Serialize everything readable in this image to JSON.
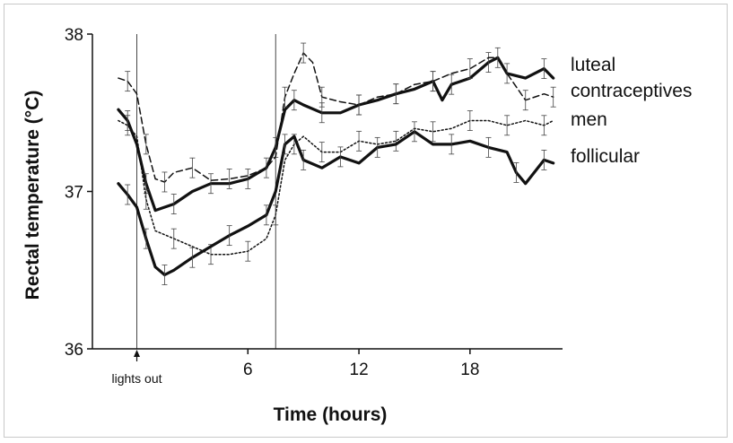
{
  "chart_data": {
    "type": "line",
    "xlabel": "Time (hours)",
    "ylabel": "Rectal temperature (°C)",
    "xlim": [
      -2.4,
      23
    ],
    "ylim": [
      36,
      38
    ],
    "xticks": [
      6,
      12,
      18
    ],
    "yticks": [
      36,
      37,
      38
    ],
    "grid": false,
    "annotations": [
      {
        "text": "lights out",
        "x": 0
      }
    ],
    "reference_lines_x": [
      0,
      7.5
    ],
    "series": [
      {
        "name": "luteal",
        "style": "solid-thick",
        "x": [
          -1,
          -0.5,
          0,
          0.5,
          1,
          2,
          3,
          4,
          5,
          6,
          7,
          7.5,
          8,
          8.5,
          9,
          10,
          11,
          12,
          13,
          14,
          15,
          16,
          16.5,
          17,
          18,
          19,
          19.5,
          20,
          21,
          22,
          22.5
        ],
        "y": [
          37.52,
          37.45,
          37.3,
          37.05,
          36.88,
          36.92,
          37.0,
          37.05,
          37.05,
          37.08,
          37.15,
          37.28,
          37.52,
          37.58,
          37.55,
          37.5,
          37.5,
          37.55,
          37.58,
          37.62,
          37.65,
          37.7,
          37.58,
          37.68,
          37.72,
          37.82,
          37.85,
          37.75,
          37.72,
          37.78,
          37.72
        ]
      },
      {
        "name": "contraceptives",
        "style": "dashed",
        "x": [
          -1,
          -0.5,
          0,
          0.5,
          1,
          1.5,
          2,
          3,
          4,
          5,
          6,
          7,
          7.5,
          8,
          8.5,
          9,
          9.5,
          10,
          11,
          12,
          13,
          14,
          15,
          16,
          17,
          18,
          19,
          19.5,
          20,
          21,
          22,
          22.5
        ],
        "y": [
          37.72,
          37.7,
          37.62,
          37.3,
          37.08,
          37.06,
          37.12,
          37.15,
          37.07,
          37.08,
          37.1,
          37.15,
          37.22,
          37.6,
          37.75,
          37.88,
          37.82,
          37.6,
          37.57,
          37.55,
          37.6,
          37.62,
          37.68,
          37.7,
          37.75,
          37.78,
          37.85,
          37.85,
          37.75,
          37.58,
          37.62,
          37.6
        ]
      },
      {
        "name": "men",
        "style": "dotted",
        "x": [
          -1,
          -0.5,
          0,
          0.5,
          1,
          2,
          3,
          4,
          5,
          6,
          7,
          7.5,
          8,
          8.5,
          9,
          10,
          11,
          12,
          13,
          14,
          15,
          16,
          17,
          18,
          19,
          20,
          21,
          22,
          22.5
        ],
        "y": [
          37.45,
          37.42,
          37.35,
          36.95,
          36.75,
          36.7,
          36.65,
          36.6,
          36.6,
          36.62,
          36.7,
          36.85,
          37.2,
          37.3,
          37.35,
          37.25,
          37.25,
          37.32,
          37.3,
          37.32,
          37.4,
          37.38,
          37.4,
          37.45,
          37.45,
          37.42,
          37.45,
          37.42,
          37.45
        ]
      },
      {
        "name": "follicular",
        "style": "solid-thick",
        "x": [
          -1,
          -0.5,
          0,
          0.5,
          1,
          1.5,
          2,
          3,
          4,
          5,
          6,
          7,
          7.5,
          8,
          8.5,
          9,
          10,
          11,
          12,
          13,
          14,
          15,
          16,
          17,
          18,
          19,
          20,
          20.5,
          21,
          22,
          22.5
        ],
        "y": [
          37.05,
          36.98,
          36.9,
          36.7,
          36.52,
          36.47,
          36.5,
          36.58,
          36.65,
          36.72,
          36.78,
          36.85,
          37.0,
          37.3,
          37.35,
          37.2,
          37.15,
          37.22,
          37.18,
          37.28,
          37.3,
          37.38,
          37.3,
          37.3,
          37.32,
          37.28,
          37.25,
          37.12,
          37.05,
          37.2,
          37.18
        ]
      }
    ]
  }
}
